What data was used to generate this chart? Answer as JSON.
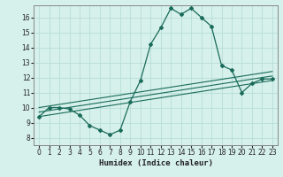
{
  "title": "",
  "xlabel": "Humidex (Indice chaleur)",
  "bg_color": "#d6f0eb",
  "line_color": "#1a6b5a",
  "grid_color": "#b8ddd8",
  "xlim": [
    -0.5,
    23.5
  ],
  "ylim": [
    7.5,
    16.8
  ],
  "xticks": [
    0,
    1,
    2,
    3,
    4,
    5,
    6,
    7,
    8,
    9,
    10,
    11,
    12,
    13,
    14,
    15,
    16,
    17,
    18,
    19,
    20,
    21,
    22,
    23
  ],
  "yticks": [
    8,
    9,
    10,
    11,
    12,
    13,
    14,
    15,
    16
  ],
  "main_x": [
    0,
    1,
    2,
    3,
    4,
    5,
    6,
    7,
    8,
    9,
    10,
    11,
    12,
    13,
    14,
    15,
    16,
    17,
    18,
    19,
    20,
    21,
    22,
    23
  ],
  "main_y": [
    9.4,
    10.0,
    10.0,
    9.9,
    9.5,
    8.8,
    8.5,
    8.2,
    8.5,
    10.4,
    11.8,
    14.2,
    15.3,
    16.6,
    16.2,
    16.6,
    16.0,
    15.4,
    12.8,
    12.5,
    11.0,
    11.6,
    11.9,
    11.9
  ],
  "line1_x": [
    0,
    23
  ],
  "line1_y": [
    9.4,
    11.8
  ],
  "line2_x": [
    0,
    23
  ],
  "line2_y": [
    9.7,
    12.1
  ],
  "line3_x": [
    0,
    23
  ],
  "line3_y": [
    10.0,
    12.4
  ],
  "tick_fontsize": 5.5,
  "xlabel_fontsize": 6.5
}
